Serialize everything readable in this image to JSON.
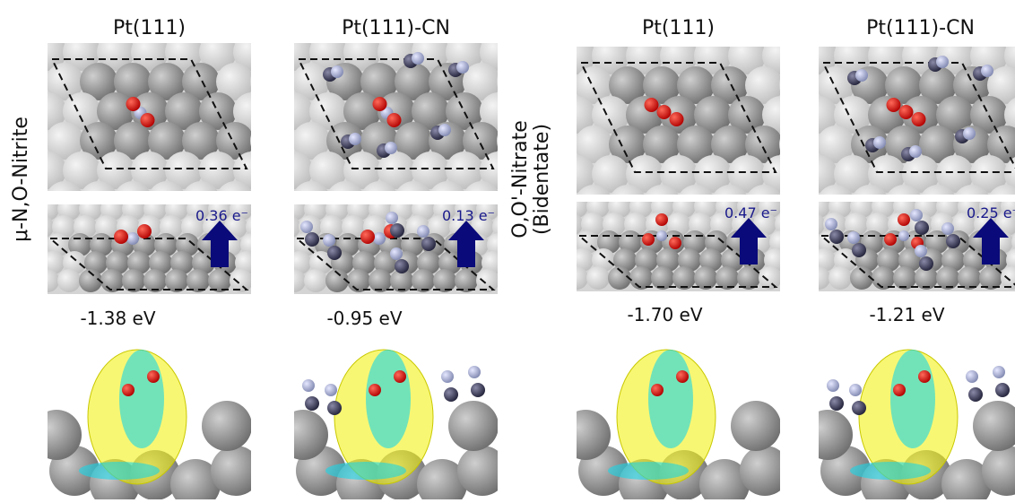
{
  "groups": [
    {
      "label_lines": [
        "μ-N,O-Nitrite"
      ],
      "panels": [
        {
          "title": "Pt(111)",
          "charge": "0.36 e⁻",
          "energy": "-1.38 eV"
        },
        {
          "title": "Pt(111)-CN",
          "charge": "0.13 e⁻",
          "energy": "-0.95 eV"
        }
      ]
    },
    {
      "label_lines": [
        "O,O'-Nitrate",
        "(Bidentate)"
      ],
      "panels": [
        {
          "title": "Pt(111)",
          "charge": "0.47 e⁻",
          "energy": "-1.70 eV"
        },
        {
          "title": "Pt(111)-CN",
          "charge": "0.25 e⁻",
          "energy": "-1.21 eV"
        }
      ]
    }
  ]
}
